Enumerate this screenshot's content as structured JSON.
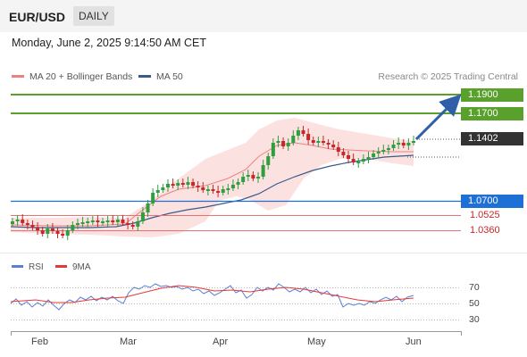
{
  "header": {
    "pair": "EUR/USD",
    "timeframe": "DAILY"
  },
  "datetime": "Monday, June 2, 2025 9:14:50 AM CET",
  "legend": {
    "bollinger": "MA 20 + Bollinger Bands",
    "ma50": "MA 50"
  },
  "credit": "Research © 2025 Trading Central",
  "levels": [
    {
      "label": "1.1900",
      "style": "green-box"
    },
    {
      "label": "1.1700",
      "style": "green-box"
    },
    {
      "label": "1.1402",
      "style": "dark-box"
    },
    {
      "label": "1.0700",
      "style": "blue-box"
    },
    {
      "label": "1.0525",
      "style": "red-text"
    },
    {
      "label": "1.0360",
      "style": "red-text"
    }
  ],
  "rsi_legend": {
    "rsi": "RSI",
    "ma": "9MA"
  },
  "rsi_levels": [
    "70",
    "50",
    "30"
  ],
  "months": [
    "Feb",
    "Mar",
    "Apr",
    "May",
    "Jun"
  ],
  "colors": {
    "resistance": "#5aa02c",
    "support": "#1e6fd6",
    "pivot": "#e53935",
    "candle_up": "#2e9e3f",
    "candle_down": "#c62828",
    "ma50": "#3a5a8c",
    "ma20": "#f08080",
    "last_price": "#333333",
    "rsi": "#5b7fd6",
    "rsi_ma": "#e53935",
    "arrow": "#2f5fa8"
  }
}
